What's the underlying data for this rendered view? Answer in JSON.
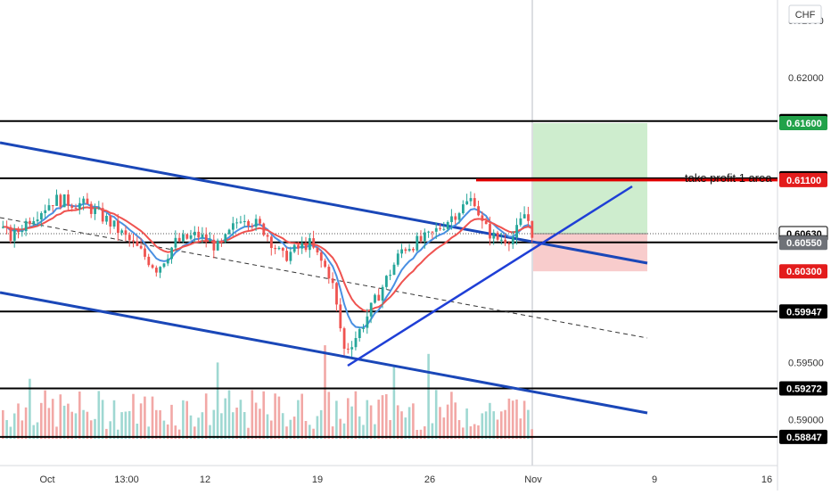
{
  "currency_label": "CHF",
  "annotation": "take profit 1 area",
  "chart_data": {
    "type": "candlestick",
    "y_range": [
      0.5875,
      0.6268
    ],
    "price_ticks": [
      "0.62500",
      "0.62000",
      "0.59500",
      "0.59000"
    ],
    "x_ticks": [
      "Oct",
      "13:00",
      "12",
      "19",
      "26",
      "Nov",
      "9",
      "16"
    ],
    "horizontal_levels": [
      0.61618,
      0.61116,
      0.60554,
      0.59947,
      0.59272,
      0.58847
    ],
    "price_labels": [
      {
        "text": "0.61618",
        "value": 0.61618,
        "style": "dark"
      },
      {
        "text": "0.61600",
        "value": 0.616,
        "style": "green"
      },
      {
        "text": "0.61116",
        "value": 0.61116,
        "style": "dark"
      },
      {
        "text": "0.61100",
        "value": 0.611,
        "style": "red"
      },
      {
        "text": "0.60630",
        "value": 0.6063,
        "style": "outline"
      },
      {
        "text": "0.60554",
        "value": 0.60554,
        "style": "dark"
      },
      {
        "text": "0.60550",
        "value": 0.6055,
        "style": "gray"
      },
      {
        "text": "0.60300",
        "value": 0.603,
        "style": "red"
      },
      {
        "text": "0.59947",
        "value": 0.59947,
        "style": "dark"
      },
      {
        "text": "0.59272",
        "value": 0.59272,
        "style": "dark"
      },
      {
        "text": "0.58847",
        "value": 0.58847,
        "style": "dark"
      }
    ],
    "position": {
      "entry": 0.6063,
      "stop": 0.603,
      "target": 0.616
    },
    "colors": {
      "up": "#26a69a",
      "down": "#ef5350",
      "trend": "#1a47b8",
      "ma_fast": "#4a90e2",
      "ma_slow": "#ef5350",
      "level": "#000000"
    }
  }
}
